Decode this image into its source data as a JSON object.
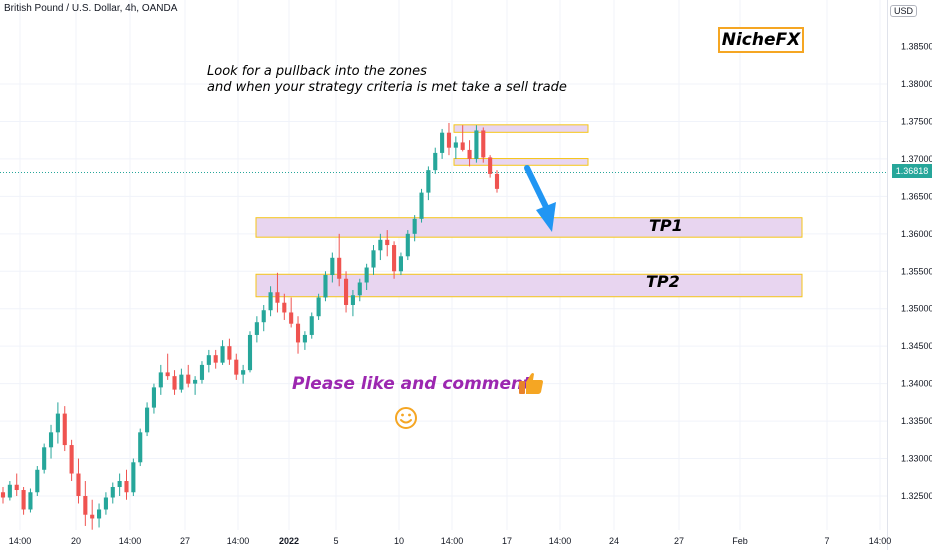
{
  "header": {
    "symbol_title": "British Pound / U.S. Dollar, 4h, OANDA",
    "currency": "USD"
  },
  "annotations": {
    "brand": "NicheFX",
    "note_line1": "Look for a pullback into the zones",
    "note_line2": "and when your strategy criteria is met take a sell trade",
    "tp1": "TP1",
    "tp2": "TP2",
    "cta": "Please like and comment"
  },
  "current_price": "1.36818",
  "colors": {
    "up": "#26a69a",
    "down": "#ef5350",
    "zone_fill": "#e8d5f0",
    "zone_border": "#f5c518",
    "arrow": "#2196f3",
    "brand_border": "#f5a623",
    "cta": "#9c27b0"
  },
  "chart_data": {
    "type": "candlestick",
    "title": "British Pound / U.S. Dollar, 4h, OANDA",
    "y_axis": {
      "side": "right",
      "range": [
        1.3215,
        1.381
      ],
      "ticks": [
        "1.38000",
        "1.37500",
        "1.37000",
        "1.36500",
        "1.36000",
        "1.35500",
        "1.35000",
        "1.34500",
        "1.34000",
        "1.33500",
        "1.33000",
        "1.32500"
      ],
      "partial_top_tick": "1.38500"
    },
    "x_axis": {
      "ticks": [
        "14:00",
        "20",
        "14:00",
        "27",
        "14:00",
        "2022",
        "5",
        "10",
        "14:00",
        "17",
        "14:00",
        "24",
        "27",
        "Feb",
        "7",
        "14:00"
      ],
      "bold_tick": "2022"
    },
    "grid": true,
    "ohlc": [
      [
        1.3255,
        1.3262,
        1.324,
        1.3248
      ],
      [
        1.3248,
        1.327,
        1.3244,
        1.3265
      ],
      [
        1.3265,
        1.328,
        1.325,
        1.3258
      ],
      [
        1.3258,
        1.3262,
        1.3225,
        1.3232
      ],
      [
        1.3232,
        1.326,
        1.3228,
        1.3255
      ],
      [
        1.3255,
        1.329,
        1.325,
        1.3285
      ],
      [
        1.3285,
        1.332,
        1.328,
        1.3315
      ],
      [
        1.3315,
        1.3345,
        1.33,
        1.3335
      ],
      [
        1.3335,
        1.3375,
        1.332,
        1.336
      ],
      [
        1.336,
        1.337,
        1.331,
        1.3318
      ],
      [
        1.3318,
        1.3325,
        1.327,
        1.328
      ],
      [
        1.328,
        1.33,
        1.324,
        1.325
      ],
      [
        1.325,
        1.327,
        1.321,
        1.3225
      ],
      [
        1.3225,
        1.3245,
        1.3205,
        1.322
      ],
      [
        1.322,
        1.324,
        1.3208,
        1.3232
      ],
      [
        1.3232,
        1.3255,
        1.3225,
        1.3248
      ],
      [
        1.3248,
        1.3268,
        1.324,
        1.3262
      ],
      [
        1.3262,
        1.328,
        1.325,
        1.327
      ],
      [
        1.327,
        1.3285,
        1.3245,
        1.3255
      ],
      [
        1.3255,
        1.33,
        1.325,
        1.3295
      ],
      [
        1.3295,
        1.334,
        1.329,
        1.3335
      ],
      [
        1.3335,
        1.3375,
        1.333,
        1.3368
      ],
      [
        1.3368,
        1.34,
        1.336,
        1.3395
      ],
      [
        1.3395,
        1.3425,
        1.3385,
        1.3415
      ],
      [
        1.3415,
        1.344,
        1.3405,
        1.341
      ],
      [
        1.341,
        1.3418,
        1.3385,
        1.3392
      ],
      [
        1.3392,
        1.342,
        1.3388,
        1.3412
      ],
      [
        1.3412,
        1.3425,
        1.3395,
        1.34
      ],
      [
        1.34,
        1.341,
        1.3385,
        1.3405
      ],
      [
        1.3405,
        1.343,
        1.34,
        1.3425
      ],
      [
        1.3425,
        1.3445,
        1.3415,
        1.3438
      ],
      [
        1.3438,
        1.3445,
        1.342,
        1.3428
      ],
      [
        1.3428,
        1.3458,
        1.3425,
        1.345
      ],
      [
        1.345,
        1.346,
        1.3425,
        1.3432
      ],
      [
        1.3432,
        1.344,
        1.3405,
        1.3412
      ],
      [
        1.3412,
        1.3425,
        1.34,
        1.3418
      ],
      [
        1.3418,
        1.347,
        1.3415,
        1.3465
      ],
      [
        1.3465,
        1.349,
        1.3455,
        1.3482
      ],
      [
        1.3482,
        1.3505,
        1.347,
        1.3498
      ],
      [
        1.3498,
        1.353,
        1.349,
        1.3522
      ],
      [
        1.3522,
        1.3548,
        1.3495,
        1.3508
      ],
      [
        1.3508,
        1.352,
        1.3485,
        1.3495
      ],
      [
        1.3495,
        1.3515,
        1.3475,
        1.348
      ],
      [
        1.348,
        1.349,
        1.344,
        1.3455
      ],
      [
        1.3455,
        1.347,
        1.3445,
        1.3465
      ],
      [
        1.3465,
        1.3495,
        1.346,
        1.349
      ],
      [
        1.349,
        1.352,
        1.3485,
        1.3515
      ],
      [
        1.3515,
        1.355,
        1.351,
        1.3545
      ],
      [
        1.3545,
        1.3575,
        1.3535,
        1.3568
      ],
      [
        1.3568,
        1.36,
        1.353,
        1.354
      ],
      [
        1.354,
        1.355,
        1.3495,
        1.3505
      ],
      [
        1.3505,
        1.3525,
        1.349,
        1.3518
      ],
      [
        1.3518,
        1.354,
        1.351,
        1.3535
      ],
      [
        1.3535,
        1.356,
        1.3525,
        1.3555
      ],
      [
        1.3555,
        1.3585,
        1.3545,
        1.3578
      ],
      [
        1.3578,
        1.36,
        1.3565,
        1.3592
      ],
      [
        1.3592,
        1.3605,
        1.357,
        1.3585
      ],
      [
        1.3585,
        1.359,
        1.354,
        1.355
      ],
      [
        1.355,
        1.3575,
        1.3545,
        1.357
      ],
      [
        1.357,
        1.3605,
        1.3565,
        1.36
      ],
      [
        1.36,
        1.3625,
        1.359,
        1.362
      ],
      [
        1.362,
        1.366,
        1.3615,
        1.3655
      ],
      [
        1.3655,
        1.369,
        1.3645,
        1.3685
      ],
      [
        1.3685,
        1.3715,
        1.368,
        1.3708
      ],
      [
        1.3708,
        1.374,
        1.37,
        1.3735
      ],
      [
        1.3735,
        1.3748,
        1.3705,
        1.3715
      ],
      [
        1.3715,
        1.373,
        1.37,
        1.3722
      ],
      [
        1.3722,
        1.3745,
        1.371,
        1.3712
      ],
      [
        1.3712,
        1.3725,
        1.369,
        1.37
      ],
      [
        1.37,
        1.3745,
        1.3695,
        1.3738
      ],
      [
        1.3738,
        1.3742,
        1.3695,
        1.3702
      ],
      [
        1.3702,
        1.3705,
        1.3675,
        1.368
      ],
      [
        1.368,
        1.3685,
        1.3655,
        1.366
      ]
    ],
    "zones": [
      {
        "from": 1.37355,
        "to": 1.37455
      },
      {
        "from": 1.36915,
        "to": 1.37005
      },
      {
        "from": 1.35955,
        "to": 1.36215
      },
      {
        "from": 1.3516,
        "to": 1.3546
      }
    ],
    "current_price": 1.36818
  }
}
